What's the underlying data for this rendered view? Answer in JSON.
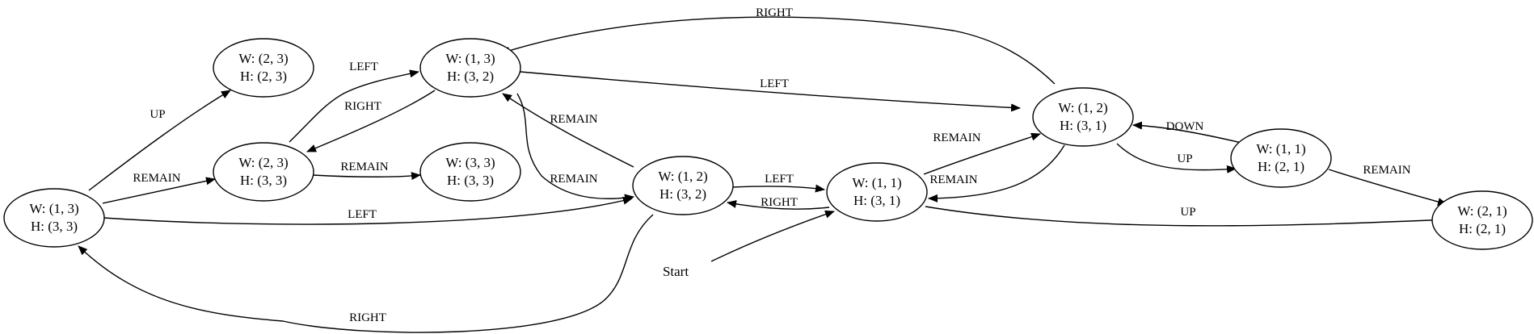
{
  "nodes": [
    {
      "id": "n_w13_h33",
      "l1": "W: (1, 3)",
      "l2": "H: (3, 3)"
    },
    {
      "id": "n_w23_h23",
      "l1": "W: (2, 3)",
      "l2": "H: (2, 3)"
    },
    {
      "id": "n_w23_h33",
      "l1": "W: (2, 3)",
      "l2": "H: (3, 3)"
    },
    {
      "id": "n_w13_h32",
      "l1": "W: (1, 3)",
      "l2": "H: (3, 2)"
    },
    {
      "id": "n_w33_h33",
      "l1": "W: (3, 3)",
      "l2": "H: (3, 3)"
    },
    {
      "id": "n_w12_h32",
      "l1": "W: (1, 2)",
      "l2": "H: (3, 2)"
    },
    {
      "id": "n_w11_h31",
      "l1": "W: (1, 1)",
      "l2": "H: (3, 1)"
    },
    {
      "id": "n_w12_h31",
      "l1": "W: (1, 2)",
      "l2": "H: (3, 1)"
    },
    {
      "id": "n_w11_h21",
      "l1": "W: (1, 1)",
      "l2": "H: (2, 1)"
    },
    {
      "id": "n_w21_h21",
      "l1": "W: (2, 1)",
      "l2": "H: (2, 1)"
    }
  ],
  "edges": [
    {
      "from": "n_w13_h33",
      "to": "n_w23_h23",
      "label": "UP"
    },
    {
      "from": "n_w13_h33",
      "to": "n_w23_h33",
      "label": "REMAIN"
    },
    {
      "from": "n_w13_h33",
      "to": "n_w12_h32",
      "label": "LEFT"
    },
    {
      "from": "n_w23_h33",
      "to": "n_w13_h32",
      "label": "LEFT"
    },
    {
      "from": "n_w13_h32",
      "to": "n_w23_h33",
      "label": "RIGHT"
    },
    {
      "from": "n_w23_h33",
      "to": "n_w33_h33",
      "label": "REMAIN"
    },
    {
      "from": "n_w13_h32",
      "to": "n_w12_h31",
      "label": "LEFT"
    },
    {
      "from": "n_w12_h31",
      "to": "n_w13_h32",
      "label": "RIGHT"
    },
    {
      "from": "n_w12_h32",
      "to": "n_w13_h32",
      "label": "REMAIN"
    },
    {
      "from": "n_w13_h32",
      "to": "n_w12_h32",
      "label": "REMAIN"
    },
    {
      "from": "n_w12_h32",
      "to": "n_w11_h31",
      "label": "LEFT"
    },
    {
      "from": "n_w11_h31",
      "to": "n_w12_h32",
      "label": "RIGHT"
    },
    {
      "from": "n_w12_h32",
      "to": "n_w13_h33",
      "label": "RIGHT"
    },
    {
      "from": "n_w11_h31",
      "to": "n_w12_h31",
      "label": "REMAIN"
    },
    {
      "from": "n_w12_h31",
      "to": "n_w11_h31",
      "label": "REMAIN"
    },
    {
      "from": "n_w11_h31",
      "to": "n_w21_h21",
      "label": "UP"
    },
    {
      "from": "n_w11_h21",
      "to": "n_w12_h31",
      "label": "DOWN"
    },
    {
      "from": "n_w12_h31",
      "to": "n_w11_h21",
      "label": "UP"
    },
    {
      "from": "n_w11_h21",
      "to": "n_w21_h21",
      "label": "REMAIN"
    }
  ],
  "start": {
    "label": "Start",
    "to": "n_w11_h31"
  }
}
